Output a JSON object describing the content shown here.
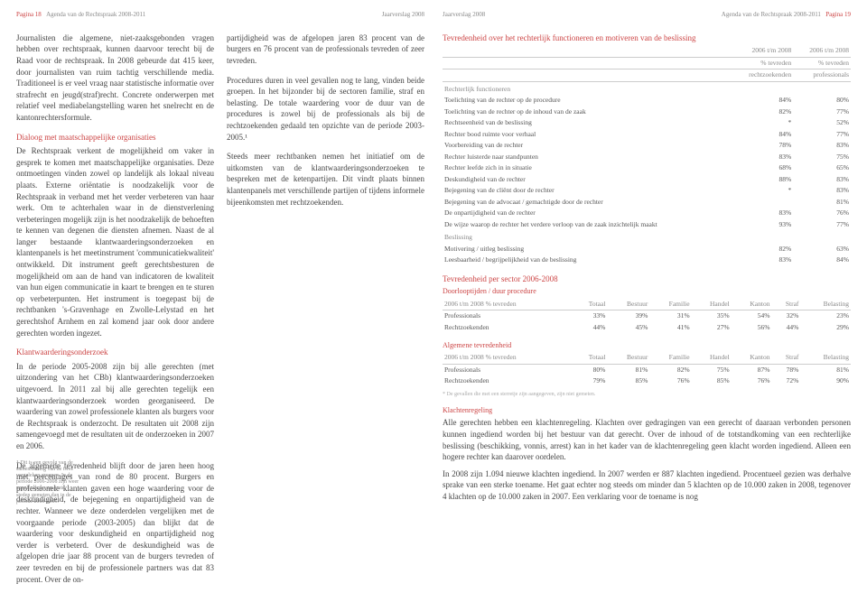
{
  "header": {
    "leftPage": "Pagina 18",
    "leftTitle": "Agenda van de Rechtspraak 2008-2011",
    "center": "Jaarverslag 2008",
    "rightTitle": "Agenda van de Rechtspraak 2008-2011",
    "rightPage": "Pagina 19"
  },
  "left": {
    "col1": {
      "p1": "Journalisten die algemene, niet-zaaksgebonden vragen hebben over rechtspraak, kunnen daarvoor terecht bij de Raad voor de rechtspraak. In 2008 gebeurde dat 415 keer, door journalisten van ruim tachtig verschillende media. Traditioneel is er veel vraag naar statistische informatie over strafrecht en jeugd(straf)recht. Concrete onderwerpen met relatief veel mediabelangstelling waren het snelrecht en de kantonrechtersformule.",
      "h1": "Dialoog met maatschappelijke organisaties",
      "p2": "De Rechtspraak verkent de mogelijkheid om vaker in gesprek te komen met maatschappelijke organisaties. Deze ontmoetingen vinden zowel op landelijk als lokaal niveau plaats. Externe oriëntatie is noodzakelijk voor de Rechtspraak in verband met het verder verbeteren van haar werk. Om te achterhalen waar in de dienstverlening verbeteringen mogelijk zijn is het noodzakelijk de behoeften te kennen van degenen die diensten afnemen. Naast de al langer bestaande klantwaarderingsonderzoeken en klantenpanels is het meetinstrument 'communicatiekwaliteit' ontwikkeld. Dit instrument geeft gerechtsbesturen de mogelijkheid om aan de hand van indicatoren de kwaliteit van hun eigen communicatie in kaart te brengen en te sturen op verbeterpunten. Het instrument is toegepast bij de rechtbanken 's-Gravenhage en Zwolle-Lelystad en het gerechtshof Arnhem en zal komend jaar ook door andere gerechten worden ingezet.",
      "h2": "Klantwaarderingsonderzoek",
      "p3": "In de periode 2005-2008 zijn bij alle gerechten (met uitzondering van het CBb) klantwaarderingsonderzoeken uitgevoerd. In 2011 zal bij alle gerechten tegelijk een klantwaarderingsonderzoek worden georganiseerd. De waardering van zowel professionele klanten als burgers voor de Rechtspraak is onderzocht. De resultaten uit 2008 zijn samengevoegd met de resultaten uit de onderzoeken in 2007 en 2006.",
      "p4": "De algemene tevredenheid blijft door de jaren heen hoog met percentages van rond de 80 procent. Burgers en professionele klanten gaven een hoge waardering voor de deskundigheid, de bejegening en onpartijdigheid van de rechter. Wanneer we deze onderdelen vergelijken met de voorgaande periode (2003-2005) dan blijkt dat de waardering voor deskundigheid en onpartijdigheid nog verder is verbeterd. Over de deskundigheid was de afgelopen drie jaar 88 procent van de burgers tevreden of zeer tevreden en bij de professionele partners was dat 83 procent. Over de on-"
    },
    "col2": {
      "p1": "partijdigheid was de afgelopen jaren 83 procent van de burgers en 76 procent van de professionals tevreden of zeer tevreden.",
      "p2": "Procedures duren in veel gevallen nog te lang, vinden beide groepen. In het bijzonder bij de sectoren familie, straf en belasting. De totale waardering voor de duur van de procedures is zowel bij de professionals als bij de rechtzoekenden gedaald ten opzichte van de periode 2003-2005.¹",
      "p3": "Steeds meer rechtbanken nemen het initiatief om de uitkomsten van de klantwaarderingsonderzoeken te bespreken met de ketenpartijen. Dit vindt plaats binnen klantenpanels met verschillende partijen of tijdens informele bijeenkomsten met rechtzoekenden."
    },
    "footnote": "1 Dit is een gevolg van de samenstelling van de twee vergeleken groepen. In de periode 2006-2008 zijn weer appelcolleges en grote steden gemeten dan in de periode 2003-2005."
  },
  "right": {
    "t1": {
      "title": "Tevredenheid over het rechterlijk functioneren en motiveren van de beslissing",
      "h1a": "2006 t/m 2008",
      "h1b": "2006 t/m 2008",
      "h2a": "% tevreden",
      "h2b": "% tevreden",
      "h3a": "rechtzoekenden",
      "h3b": "professionals",
      "cat1": "Rechterlijk functioneren",
      "rows1": [
        [
          "Toelichting van de rechter op de procedure",
          "84%",
          "80%"
        ],
        [
          "Toelichting van de rechter op de inhoud van de zaak",
          "82%",
          "77%"
        ],
        [
          "Rechtseenheid van de beslissing",
          "*",
          "52%"
        ],
        [
          "Rechter bood ruimte voor verhaal",
          "84%",
          "77%"
        ],
        [
          "Voorbereiding van de rechter",
          "78%",
          "83%"
        ],
        [
          "Rechter luisterde naar standpunten",
          "83%",
          "75%"
        ],
        [
          "Rechter leefde zich in in situatie",
          "68%",
          "65%"
        ],
        [
          "Deskundigheid van de rechter",
          "88%",
          "83%"
        ],
        [
          "Bejegening van de cliënt door de rechter",
          "*",
          "83%"
        ],
        [
          "Bejegening van de advocaat / gemachtigde door de rechter",
          "",
          "81%"
        ],
        [
          "De onpartijdigheid van de rechter",
          "83%",
          "76%"
        ],
        [
          "De wijze waarop de rechter het verdere verloop van de zaak inzichtelijk maakt",
          "93%",
          "77%"
        ]
      ],
      "cat2": "Beslissing",
      "rows2": [
        [
          "Motivering / uitleg beslissing",
          "82%",
          "63%"
        ],
        [
          "Leesbaarheid / begrijpelijkheid van de beslissing",
          "83%",
          "84%"
        ]
      ]
    },
    "t2": {
      "title": "Tevredenheid per sector 2006-2008",
      "sub": "Doorlooptijden / duur procedure",
      "headers": [
        "2006 t/m 2008 % tevreden",
        "Totaal",
        "Bestuur",
        "Familie",
        "Handel",
        "Kanton",
        "Straf",
        "Belasting"
      ],
      "rows": [
        [
          "Professionals",
          "33%",
          "39%",
          "31%",
          "35%",
          "54%",
          "32%",
          "23%"
        ],
        [
          "Rechtzoekenden",
          "44%",
          "45%",
          "41%",
          "27%",
          "56%",
          "44%",
          "29%"
        ]
      ]
    },
    "t3": {
      "sub": "Algemene tevredenheid",
      "headers": [
        "2006 t/m 2008 % tevreden",
        "Totaal",
        "Bestuur",
        "Familie",
        "Handel",
        "Kanton",
        "Straf",
        "Belasting"
      ],
      "rows": [
        [
          "Professionals",
          "80%",
          "81%",
          "82%",
          "75%",
          "87%",
          "78%",
          "81%"
        ],
        [
          "Rechtzoekenden",
          "79%",
          "85%",
          "76%",
          "85%",
          "76%",
          "72%",
          "90%"
        ]
      ]
    },
    "note": "* De gevallen die met een sterretje zijn aangegeven, zijn niet gemeten.",
    "h3": "Klachtenregeling",
    "p1": "Alle gerechten hebben een klachtenregeling. Klachten over gedragingen van een gerecht of daaraan verbonden personen kunnen ingediend worden bij het bestuur van dat gerecht. Over de inhoud of de totstandkoming van een rechterlijke beslissing (beschikking, vonnis, arrest) kan in het kader van de klachtenregeling geen klacht worden ingediend. Alleen een hogere rechter kan daarover oordelen.",
    "p2": "In 2008 zijn 1.094 nieuwe klachten ingediend. In 2007 werden er 887 klachten ingediend. Procentueel gezien was derhalve sprake van een sterke toename. Het gaat echter nog steeds om minder dan 5 klachten op de 10.000 zaken in 2008, tegenover 4 klachten op de 10.000 zaken in 2007. Een verklaring voor de toename is nog"
  }
}
